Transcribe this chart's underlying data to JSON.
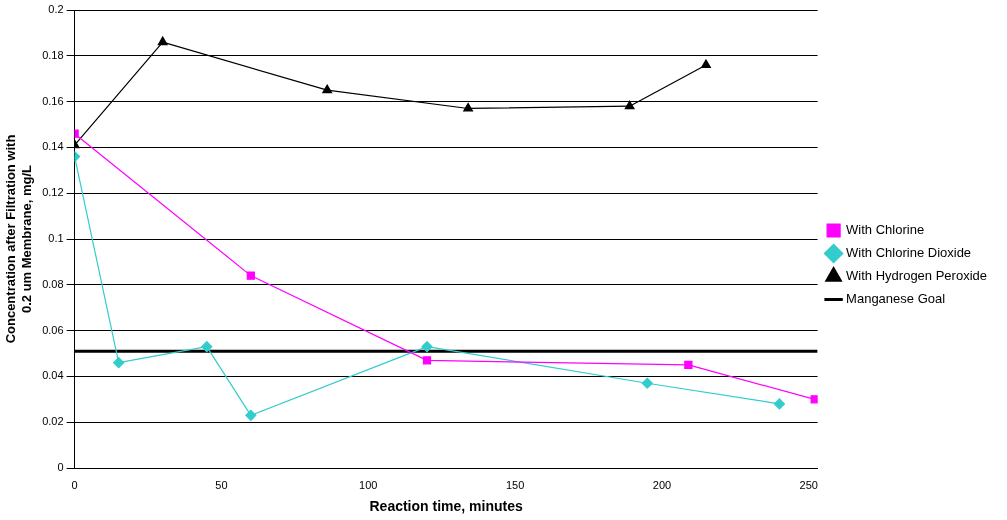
{
  "chart_data": {
    "type": "line",
    "xlabel": "Reaction time, minutes",
    "ylabel": "Concentration after Filtration with\n0.2 um Membrane, mg/L",
    "xlim": [
      0,
      253
    ],
    "xticks": [
      0,
      50,
      100,
      150,
      200,
      250
    ],
    "ylim": [
      0,
      0.2
    ],
    "yticks": [
      0,
      0.02,
      0.04,
      0.06,
      0.08,
      0.1,
      0.12,
      0.14,
      0.16,
      0.18,
      0.2
    ],
    "grid": "y",
    "legend": "right",
    "series": [
      {
        "name": "With Chlorine",
        "color": "#ff00ff",
        "marker": "square",
        "x": [
          0,
          60,
          120,
          209,
          252
        ],
        "values": [
          0.146,
          0.084,
          0.047,
          0.045,
          0.03
        ]
      },
      {
        "name": "With Chlorine Dioxide",
        "color": "#33cccc",
        "marker": "diamond",
        "x": [
          0,
          15,
          45,
          60,
          120,
          195,
          240
        ],
        "values": [
          0.136,
          0.046,
          0.053,
          0.023,
          0.053,
          0.037,
          0.028
        ]
      },
      {
        "name": "With Hydrogen Peroxide",
        "color": "#000000",
        "marker": "triangle",
        "x": [
          0,
          30,
          86,
          134,
          189,
          215
        ],
        "values": [
          0.141,
          0.186,
          0.165,
          0.157,
          0.158,
          0.176
        ]
      },
      {
        "name": "Manganese Goal",
        "color": "#000000",
        "marker": "none",
        "x": [
          0,
          253
        ],
        "values": [
          0.051,
          0.051
        ]
      }
    ]
  }
}
